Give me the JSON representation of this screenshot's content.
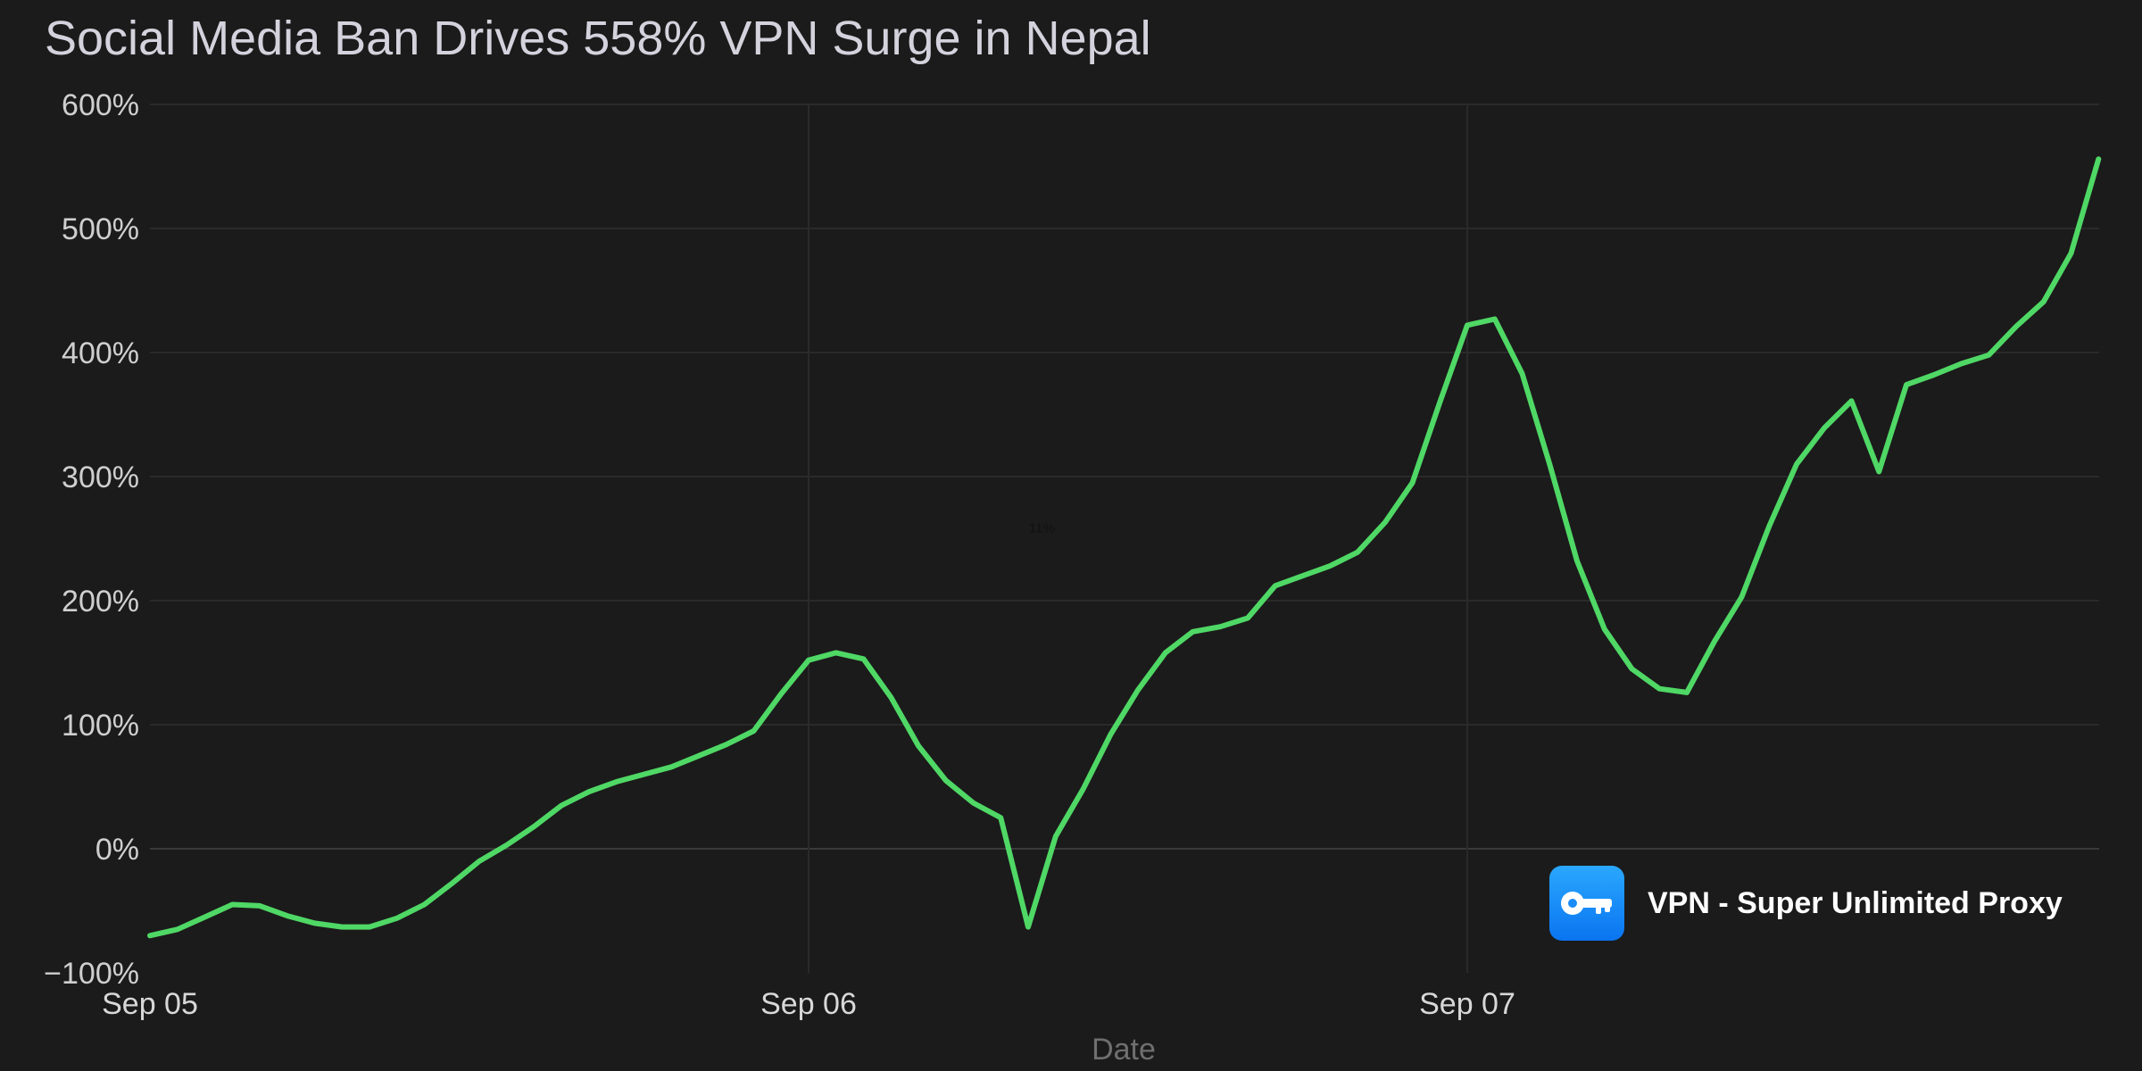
{
  "chart_data": {
    "type": "line",
    "title": "Social Media Ban Drives 558% VPN Surge in Nepal",
    "xlabel": "Date",
    "ylabel": "",
    "ylim": [
      -100,
      600
    ],
    "yticks": [
      -100,
      0,
      100,
      200,
      300,
      400,
      500,
      600
    ],
    "ytick_labels": [
      "−100%",
      "0%",
      "100%",
      "200%",
      "300%",
      "400%",
      "500%",
      "600%"
    ],
    "xlim": [
      0,
      71
    ],
    "xticks": [
      0,
      24,
      48
    ],
    "xtick_labels": [
      "Sep 05",
      "Sep 06",
      "Sep 07"
    ],
    "grid": true,
    "line_color": "#4fd865",
    "series": [
      {
        "name": "",
        "values": [
          -70,
          -65,
          -55,
          -45,
          -46,
          -54,
          -60,
          -63,
          -63,
          -56,
          -45,
          -28,
          -10,
          3,
          18,
          35,
          46,
          54,
          60,
          66,
          75,
          84,
          95,
          125,
          152,
          158,
          153,
          122,
          83,
          55,
          37,
          25,
          -63,
          10,
          48,
          92,
          128,
          158,
          175,
          179,
          186,
          212,
          220,
          228,
          239,
          263,
          295,
          360,
          422,
          427,
          383,
          310,
          232,
          177,
          145,
          129,
          126,
          167,
          203,
          260,
          310,
          339,
          361,
          304,
          374,
          382,
          391,
          398,
          421,
          441,
          480,
          556
        ]
      }
    ],
    "annotations": [
      {
        "text": "11%",
        "x": 32.5,
        "y": 255
      }
    ]
  },
  "badge": {
    "icon": "key-icon",
    "label": "VPN - Super Unlimited Proxy",
    "color": "#1a8cf8"
  }
}
